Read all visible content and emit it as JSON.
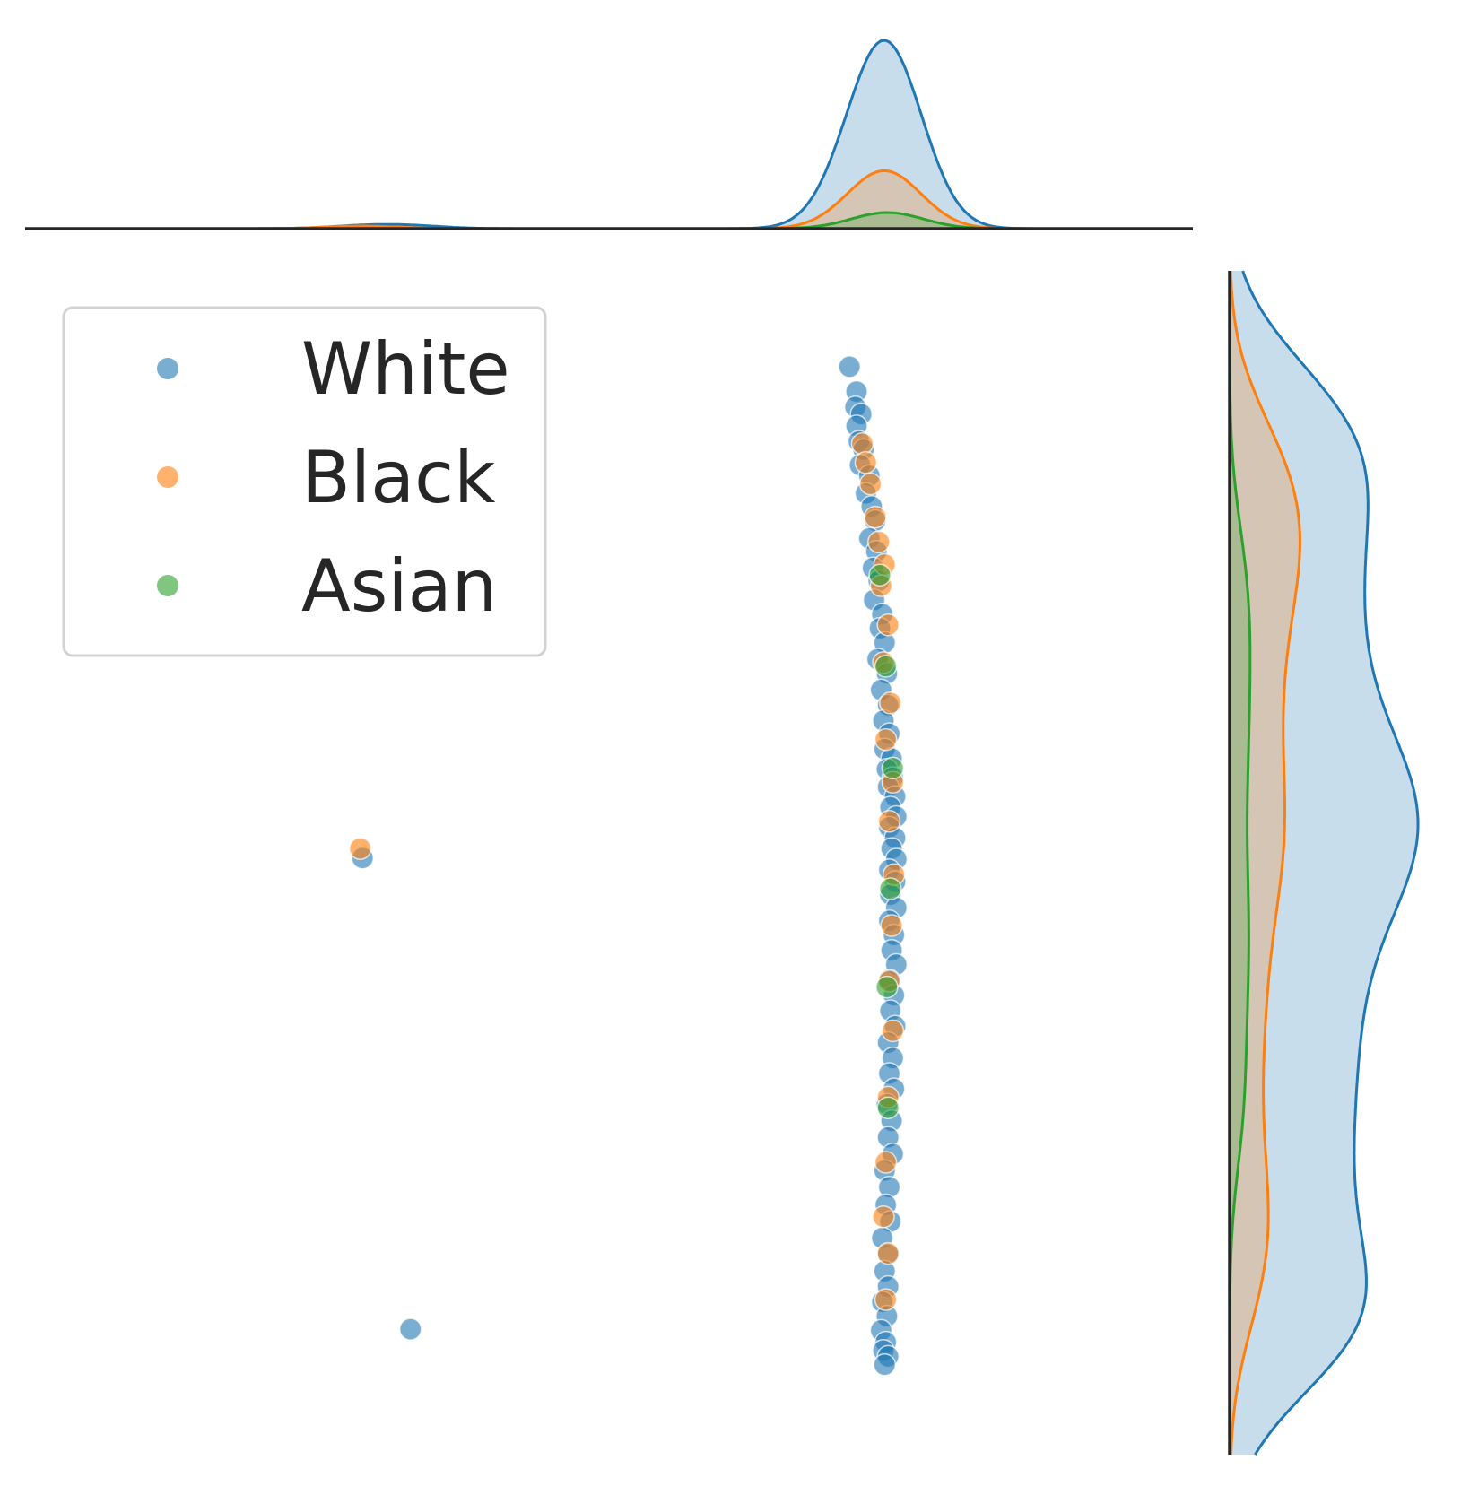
{
  "chart_data": {
    "type": "scatter",
    "title": "",
    "xlabel": "",
    "ylabel": "",
    "axes_visible": false,
    "grid": false,
    "legend_position": "top-left",
    "xlim": [
      0,
      100
    ],
    "ylim": [
      0,
      100
    ],
    "marginal_top": "kde",
    "marginal_right": "kde",
    "series": [
      {
        "name": "White",
        "color": "#1f77b4",
        "points": [
          [
            70.6,
            91.9
          ],
          [
            71.2,
            89.8
          ],
          [
            71.1,
            88.5
          ],
          [
            71.6,
            87.9
          ],
          [
            71.2,
            86.9
          ],
          [
            71.4,
            85.6
          ],
          [
            71.8,
            84.9
          ],
          [
            71.5,
            83.6
          ],
          [
            72.3,
            82.7
          ],
          [
            72.0,
            81.2
          ],
          [
            72.5,
            80.1
          ],
          [
            72.8,
            78.9
          ],
          [
            72.3,
            77.4
          ],
          [
            72.9,
            76.3
          ],
          [
            72.6,
            74.9
          ],
          [
            73.1,
            73.8
          ],
          [
            72.7,
            72.2
          ],
          [
            73.4,
            71.0
          ],
          [
            73.2,
            69.8
          ],
          [
            73.6,
            68.6
          ],
          [
            73.0,
            67.2
          ],
          [
            73.8,
            66.0
          ],
          [
            73.3,
            64.6
          ],
          [
            73.9,
            63.3
          ],
          [
            73.5,
            62.0
          ],
          [
            74.0,
            60.9
          ],
          [
            73.6,
            59.6
          ],
          [
            74.2,
            58.8
          ],
          [
            73.8,
            57.9
          ],
          [
            74.3,
            57.2
          ],
          [
            73.9,
            56.4
          ],
          [
            74.5,
            55.6
          ],
          [
            74.1,
            54.7
          ],
          [
            74.6,
            53.9
          ],
          [
            74.0,
            53.0
          ],
          [
            74.5,
            52.1
          ],
          [
            74.2,
            51.2
          ],
          [
            74.6,
            50.3
          ],
          [
            74.0,
            49.4
          ],
          [
            74.5,
            48.4
          ],
          [
            74.1,
            47.3
          ],
          [
            74.6,
            46.2
          ],
          [
            74.0,
            45.1
          ],
          [
            74.4,
            43.9
          ],
          [
            74.2,
            42.6
          ],
          [
            74.6,
            41.4
          ],
          [
            74.0,
            40.1
          ],
          [
            74.4,
            38.8
          ],
          [
            74.1,
            37.5
          ],
          [
            74.5,
            36.2
          ],
          [
            73.9,
            34.8
          ],
          [
            74.3,
            33.5
          ],
          [
            74.0,
            32.2
          ],
          [
            74.4,
            30.9
          ],
          [
            73.8,
            29.6
          ],
          [
            74.2,
            28.2
          ],
          [
            73.9,
            26.8
          ],
          [
            74.3,
            25.4
          ],
          [
            73.6,
            24.0
          ],
          [
            74.0,
            22.6
          ],
          [
            73.7,
            21.1
          ],
          [
            74.1,
            19.7
          ],
          [
            73.4,
            18.3
          ],
          [
            73.9,
            16.9
          ],
          [
            73.6,
            15.5
          ],
          [
            73.9,
            14.2
          ],
          [
            73.4,
            12.9
          ],
          [
            73.8,
            11.7
          ],
          [
            73.3,
            10.5
          ],
          [
            73.7,
            9.5
          ],
          [
            73.5,
            8.8
          ],
          [
            73.9,
            8.3
          ],
          [
            73.6,
            7.6
          ],
          [
            28.9,
            50.4
          ],
          [
            33.0,
            10.6
          ]
        ]
      },
      {
        "name": "Black",
        "color": "#ff7f0e",
        "points": [
          [
            71.7,
            85.4
          ],
          [
            72.0,
            83.8
          ],
          [
            72.4,
            82.0
          ],
          [
            72.8,
            79.2
          ],
          [
            73.1,
            77.1
          ],
          [
            73.6,
            75.2
          ],
          [
            73.3,
            73.4
          ],
          [
            73.9,
            70.1
          ],
          [
            73.5,
            66.9
          ],
          [
            74.1,
            63.5
          ],
          [
            73.7,
            60.4
          ],
          [
            74.3,
            56.8
          ],
          [
            74.0,
            53.5
          ],
          [
            74.4,
            49.0
          ],
          [
            74.2,
            44.7
          ],
          [
            74.0,
            40.0
          ],
          [
            74.3,
            35.8
          ],
          [
            73.9,
            30.2
          ],
          [
            73.7,
            24.7
          ],
          [
            73.5,
            20.1
          ],
          [
            73.9,
            17.0
          ],
          [
            73.7,
            13.1
          ],
          [
            28.7,
            51.2
          ]
        ]
      },
      {
        "name": "Asian",
        "color": "#2ca02c",
        "points": [
          [
            73.2,
            74.3
          ],
          [
            73.7,
            66.6
          ],
          [
            74.3,
            58.0
          ],
          [
            74.1,
            47.8
          ],
          [
            73.8,
            39.5
          ],
          [
            73.9,
            29.3
          ]
        ]
      }
    ]
  }
}
